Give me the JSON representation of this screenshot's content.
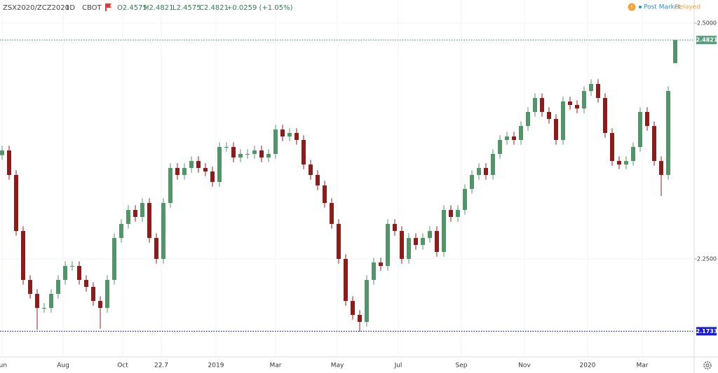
{
  "chart_data": {
    "type": "candlestick",
    "symbol": "ZSX2020/ZCZ2020",
    "interval": "1D",
    "exchange": "CBOT",
    "ohlc_text": [
      "O2.4575",
      "H2.4821",
      "L2.4575",
      "C2.4821",
      "+0.0259 (+1.05%)"
    ],
    "status": [
      "Post Market",
      "Delayed"
    ],
    "up_color": "#53946b",
    "down_color": "#8c1d1d",
    "grid": true,
    "xlim": [
      -0.3,
      98.7
    ],
    "ylim": [
      2.1461,
      2.5245
    ],
    "xticks": [
      {
        "value": 0,
        "label": "Jun"
      },
      {
        "value": 8.7,
        "label": "Aug"
      },
      {
        "value": 17.2,
        "label": "Oct"
      },
      22.7,
      {
        "value": 30.5,
        "label": "2019"
      },
      {
        "value": 39,
        "label": "Mar"
      },
      {
        "value": 47.8,
        "label": "May"
      },
      {
        "value": 56.5,
        "label": "Jul"
      },
      {
        "value": 65.5,
        "label": "Sep"
      },
      {
        "value": 74.5,
        "label": "Nov"
      },
      {
        "value": 83.5,
        "label": "2020"
      },
      {
        "value": 91.3,
        "label": "Mar"
      }
    ],
    "yticks": [
      {
        "value": 2.5,
        "label": "2.5000"
      },
      {
        "value": 2.25,
        "label": "2.2500"
      }
    ],
    "price_lines": [
      {
        "value": 2.4821,
        "color": "#53a07a"
      },
      {
        "value": 2.1733,
        "color": "#1a1adb"
      }
    ],
    "open": [
      2.36,
      2.365,
      2.339,
      2.2796,
      2.2277,
      2.2129,
      2.198,
      2.198,
      2.2129,
      2.2277,
      2.2425,
      2.2425,
      2.2277,
      2.2203,
      2.2054,
      2.198,
      2.2277,
      2.2722,
      2.2871,
      2.3019,
      2.2945,
      2.3093,
      2.2722,
      2.25,
      2.3093,
      2.3464,
      2.339,
      2.3464,
      2.3538,
      2.3464,
      2.3427,
      2.3316,
      2.3687,
      2.3687,
      2.3575,
      2.3613,
      2.3613,
      2.365,
      2.3575,
      2.3613,
      2.3872,
      2.3798,
      2.3835,
      2.3761,
      2.3501,
      2.339,
      2.3279,
      2.3093,
      2.2871,
      2.25,
      2.2054,
      2.1906,
      2.1832,
      2.2277,
      2.2462,
      2.2425,
      2.2871,
      2.2796,
      2.25,
      2.2722,
      2.2648,
      2.2722,
      2.2796,
      2.2574,
      2.3019,
      2.2945,
      2.3019,
      2.3242,
      2.339,
      2.3464,
      2.339,
      2.3613,
      2.3761,
      2.3798,
      2.3761,
      2.3909,
      2.4058,
      2.4206,
      2.4058,
      2.3984,
      2.3761,
      2.4169,
      2.4132,
      2.4095,
      2.428,
      2.4355,
      2.4206,
      2.3835,
      2.3538,
      2.3501,
      2.3538,
      2.3687,
      2.4058,
      2.3909,
      2.3538,
      2.339,
      2.4575
    ],
    "high": [
      2.37,
      2.37,
      2.344,
      2.2846,
      2.2327,
      2.2179,
      2.203,
      2.2179,
      2.2327,
      2.2475,
      2.2475,
      2.2475,
      2.2327,
      2.2253,
      2.2104,
      2.2327,
      2.2772,
      2.2921,
      2.3069,
      2.3069,
      2.3143,
      2.3143,
      2.2772,
      2.3143,
      2.3514,
      2.3514,
      2.3514,
      2.3588,
      2.3588,
      2.3514,
      2.3477,
      2.3737,
      2.3737,
      2.3737,
      2.3663,
      2.3663,
      2.37,
      2.37,
      2.3663,
      2.3922,
      2.3922,
      2.3885,
      2.3885,
      2.3811,
      2.3551,
      2.344,
      2.3329,
      2.3143,
      2.2921,
      2.255,
      2.2104,
      2.1956,
      2.2327,
      2.2512,
      2.2512,
      2.2921,
      2.2921,
      2.2846,
      2.2772,
      2.2772,
      2.2772,
      2.2846,
      2.2846,
      2.3069,
      2.3069,
      2.3069,
      2.3292,
      2.344,
      2.3514,
      2.3514,
      2.3663,
      2.3811,
      2.3848,
      2.3848,
      2.3959,
      2.4108,
      2.4256,
      2.4256,
      2.4108,
      2.4034,
      2.4219,
      2.4219,
      2.4182,
      2.433,
      2.4405,
      2.4405,
      2.4256,
      2.3885,
      2.3588,
      2.3588,
      2.3737,
      2.4108,
      2.4108,
      2.3959,
      2.3588,
      2.433,
      2.4821
    ],
    "low": [
      2.355,
      2.334,
      2.2746,
      2.2227,
      2.2079,
      2.175,
      2.193,
      2.193,
      2.2079,
      2.2227,
      2.2375,
      2.2227,
      2.2153,
      2.2004,
      2.176,
      2.193,
      2.2227,
      2.2672,
      2.2821,
      2.2895,
      2.2895,
      2.2672,
      2.245,
      2.245,
      2.3043,
      2.334,
      2.334,
      2.3414,
      2.3414,
      2.3377,
      2.3266,
      2.3266,
      2.3637,
      2.3525,
      2.3525,
      2.3563,
      2.3563,
      2.3525,
      2.3525,
      2.3563,
      2.3748,
      2.3748,
      2.3711,
      2.3451,
      2.334,
      2.3229,
      2.3043,
      2.2821,
      2.245,
      2.2004,
      2.1856,
      2.1733,
      2.1782,
      2.2227,
      2.2375,
      2.2375,
      2.2746,
      2.245,
      2.245,
      2.2598,
      2.2598,
      2.2672,
      2.2524,
      2.2524,
      2.2895,
      2.2895,
      2.2969,
      2.3192,
      2.334,
      2.334,
      2.334,
      2.3563,
      2.3711,
      2.3711,
      2.3711,
      2.3859,
      2.4008,
      2.4008,
      2.3934,
      2.3711,
      2.3711,
      2.4082,
      2.4045,
      2.4045,
      2.423,
      2.4156,
      2.3785,
      2.3488,
      2.3451,
      2.3451,
      2.3488,
      2.3637,
      2.3859,
      2.3488,
      2.3167,
      2.334,
      2.4575
    ],
    "close": [
      2.365,
      2.339,
      2.2796,
      2.2277,
      2.2129,
      2.198,
      2.198,
      2.2129,
      2.2277,
      2.2425,
      2.2425,
      2.2277,
      2.2203,
      2.2054,
      2.198,
      2.2277,
      2.2722,
      2.2871,
      2.3019,
      2.2945,
      2.3093,
      2.2722,
      2.25,
      2.3093,
      2.3464,
      2.339,
      2.3464,
      2.3538,
      2.3464,
      2.3427,
      2.3316,
      2.3687,
      2.3687,
      2.3575,
      2.3613,
      2.3613,
      2.365,
      2.3575,
      2.3613,
      2.3872,
      2.3798,
      2.3835,
      2.3761,
      2.3501,
      2.339,
      2.3279,
      2.3093,
      2.2871,
      2.25,
      2.2054,
      2.1906,
      2.1832,
      2.2277,
      2.2462,
      2.2425,
      2.2871,
      2.2796,
      2.25,
      2.2722,
      2.2648,
      2.2722,
      2.2796,
      2.2574,
      2.3019,
      2.2945,
      2.3019,
      2.3242,
      2.339,
      2.3464,
      2.339,
      2.3613,
      2.3761,
      2.3798,
      2.3761,
      2.3909,
      2.4058,
      2.4206,
      2.4058,
      2.3984,
      2.3761,
      2.4169,
      2.4132,
      2.4095,
      2.428,
      2.4355,
      2.4206,
      2.3835,
      2.3538,
      2.3501,
      2.3538,
      2.3687,
      2.4058,
      2.3909,
      2.3538,
      2.339,
      2.428,
      2.4821
    ]
  }
}
